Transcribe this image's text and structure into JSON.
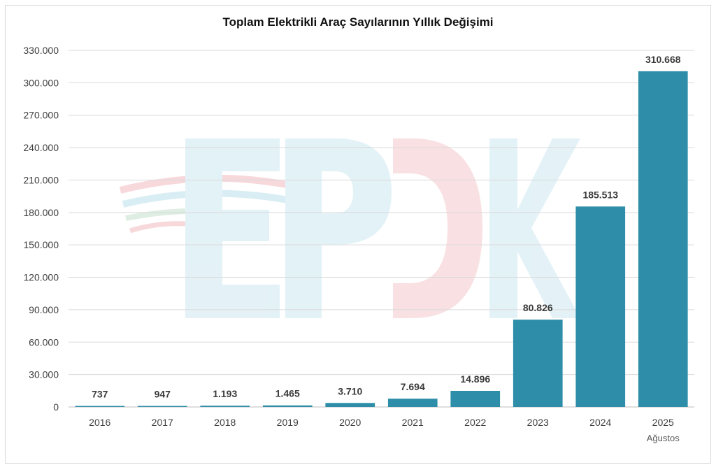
{
  "chart_data": {
    "type": "bar",
    "title": "Toplam Elektrikli Araç Sayılarının Yıllık Değişimi",
    "categories": [
      "2016",
      "2017",
      "2018",
      "2019",
      "2020",
      "2021",
      "2022",
      "2023",
      "2024",
      "2025"
    ],
    "category_sublabels": [
      "",
      "",
      "",
      "",
      "",
      "",
      "",
      "",
      "",
      "Ağustos"
    ],
    "values": [
      737,
      947,
      1193,
      1465,
      3710,
      7694,
      14896,
      80826,
      185513,
      310668
    ],
    "data_labels": [
      "737",
      "947",
      "1.193",
      "1.465",
      "3.710",
      "7.694",
      "14.896",
      "80.826",
      "185.513",
      "310.668"
    ],
    "ylim": [
      0,
      330000
    ],
    "yticks": [
      0,
      30000,
      60000,
      90000,
      120000,
      150000,
      180000,
      210000,
      240000,
      270000,
      300000,
      330000
    ],
    "ytick_labels": [
      "0",
      "30.000",
      "60.000",
      "90.000",
      "120.000",
      "150.000",
      "180.000",
      "210.000",
      "240.000",
      "270.000",
      "300.000",
      "330.000"
    ],
    "grid": true,
    "bar_color": "#2e8ea9",
    "xlabel": "",
    "ylabel": ""
  },
  "watermark": {
    "text": "EPDK",
    "colors": [
      "#d6eef5",
      "#f7d7da"
    ]
  }
}
